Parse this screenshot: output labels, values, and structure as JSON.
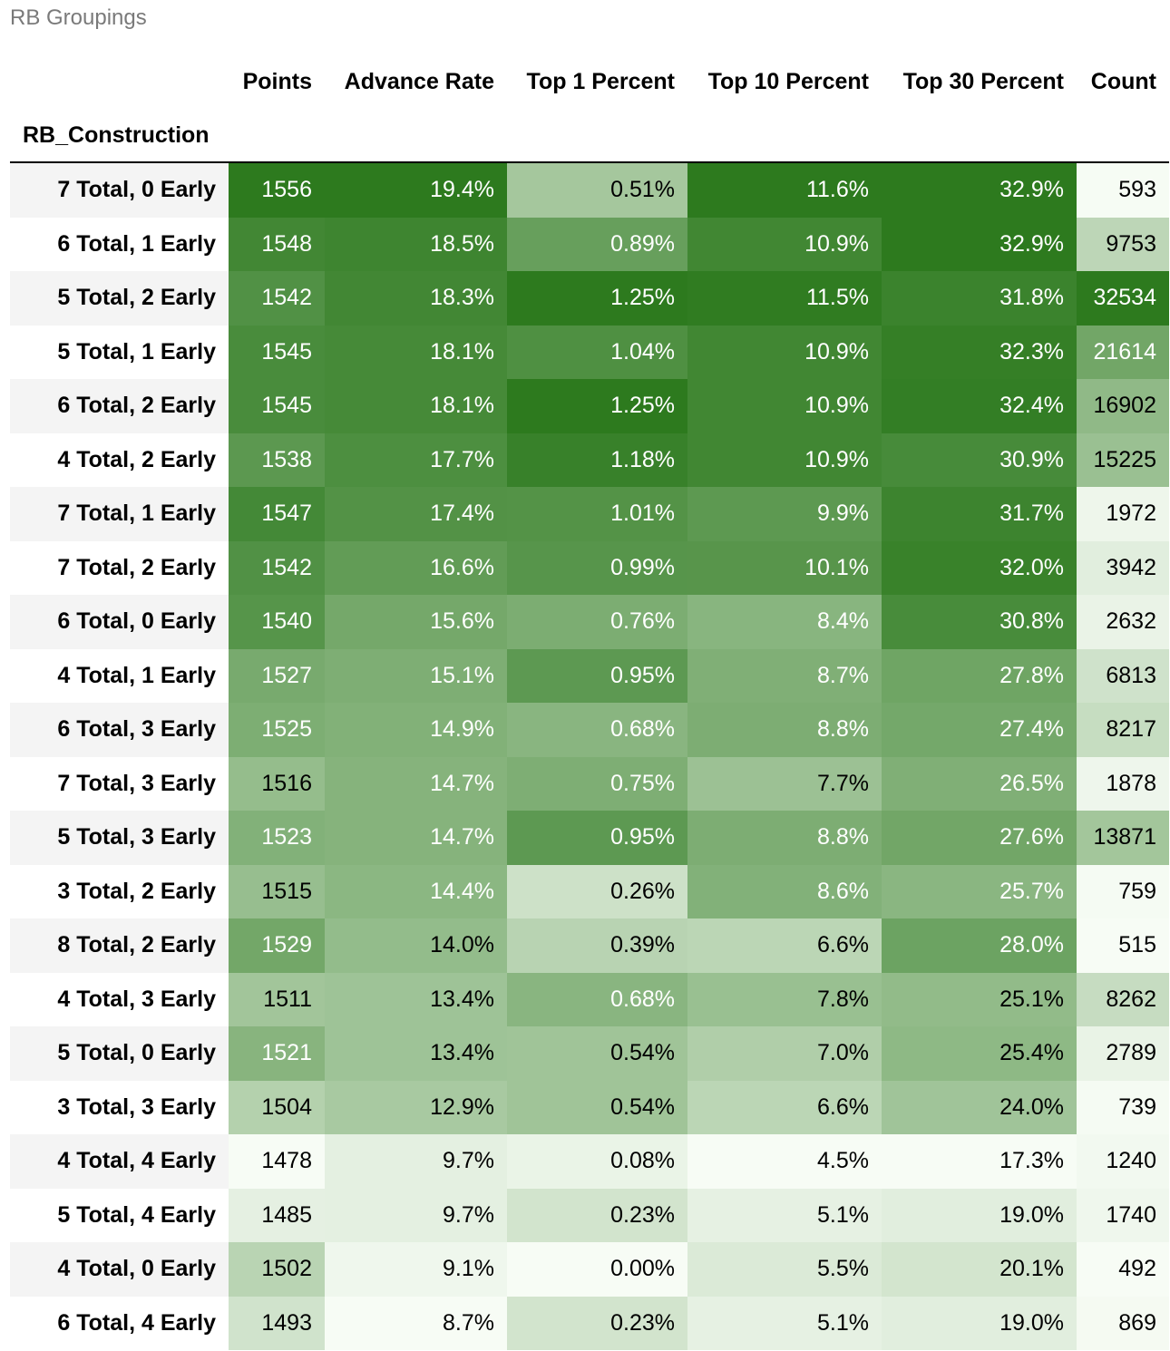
{
  "caption": "RB Groupings",
  "chart_data": {
    "type": "table",
    "title": "RB Groupings",
    "index_name": "RB_Construction",
    "columns": [
      "Points",
      "Advance Rate",
      "Top 1 Percent",
      "Top 10 Percent",
      "Top 30 Percent",
      "Count"
    ],
    "rows": [
      {
        "label": "7 Total, 0 Early",
        "values": [
          "1556",
          "19.4%",
          "0.51%",
          "11.6%",
          "32.9%",
          "593"
        ]
      },
      {
        "label": "6 Total, 1 Early",
        "values": [
          "1548",
          "18.5%",
          "0.89%",
          "10.9%",
          "32.9%",
          "9753"
        ]
      },
      {
        "label": "5 Total, 2 Early",
        "values": [
          "1542",
          "18.3%",
          "1.25%",
          "11.5%",
          "31.8%",
          "32534"
        ]
      },
      {
        "label": "5 Total, 1 Early",
        "values": [
          "1545",
          "18.1%",
          "1.04%",
          "10.9%",
          "32.3%",
          "21614"
        ]
      },
      {
        "label": "6 Total, 2 Early",
        "values": [
          "1545",
          "18.1%",
          "1.25%",
          "10.9%",
          "32.4%",
          "16902"
        ]
      },
      {
        "label": "4 Total, 2 Early",
        "values": [
          "1538",
          "17.7%",
          "1.18%",
          "10.9%",
          "30.9%",
          "15225"
        ]
      },
      {
        "label": "7 Total, 1 Early",
        "values": [
          "1547",
          "17.4%",
          "1.01%",
          "9.9%",
          "31.7%",
          "1972"
        ]
      },
      {
        "label": "7 Total, 2 Early",
        "values": [
          "1542",
          "16.6%",
          "0.99%",
          "10.1%",
          "32.0%",
          "3942"
        ]
      },
      {
        "label": "6 Total, 0 Early",
        "values": [
          "1540",
          "15.6%",
          "0.76%",
          "8.4%",
          "30.8%",
          "2632"
        ]
      },
      {
        "label": "4 Total, 1 Early",
        "values": [
          "1527",
          "15.1%",
          "0.95%",
          "8.7%",
          "27.8%",
          "6813"
        ]
      },
      {
        "label": "6 Total, 3 Early",
        "values": [
          "1525",
          "14.9%",
          "0.68%",
          "8.8%",
          "27.4%",
          "8217"
        ]
      },
      {
        "label": "7 Total, 3 Early",
        "values": [
          "1516",
          "14.7%",
          "0.75%",
          "7.7%",
          "26.5%",
          "1878"
        ]
      },
      {
        "label": "5 Total, 3 Early",
        "values": [
          "1523",
          "14.7%",
          "0.95%",
          "8.8%",
          "27.6%",
          "13871"
        ]
      },
      {
        "label": "3 Total, 2 Early",
        "values": [
          "1515",
          "14.4%",
          "0.26%",
          "8.6%",
          "25.7%",
          "759"
        ]
      },
      {
        "label": "8 Total, 2 Early",
        "values": [
          "1529",
          "14.0%",
          "0.39%",
          "6.6%",
          "28.0%",
          "515"
        ]
      },
      {
        "label": "4 Total, 3 Early",
        "values": [
          "1511",
          "13.4%",
          "0.68%",
          "7.8%",
          "25.1%",
          "8262"
        ]
      },
      {
        "label": "5 Total, 0 Early",
        "values": [
          "1521",
          "13.4%",
          "0.54%",
          "7.0%",
          "25.4%",
          "2789"
        ]
      },
      {
        "label": "3 Total, 3 Early",
        "values": [
          "1504",
          "12.9%",
          "0.54%",
          "6.6%",
          "24.0%",
          "739"
        ]
      },
      {
        "label": "4 Total, 4 Early",
        "values": [
          "1478",
          "9.7%",
          "0.08%",
          "4.5%",
          "17.3%",
          "1240"
        ]
      },
      {
        "label": "5 Total, 4 Early",
        "values": [
          "1485",
          "9.7%",
          "0.23%",
          "5.1%",
          "19.0%",
          "1740"
        ]
      },
      {
        "label": "4 Total, 0 Early",
        "values": [
          "1502",
          "9.1%",
          "0.00%",
          "5.5%",
          "20.1%",
          "492"
        ]
      },
      {
        "label": "6 Total, 4 Early",
        "values": [
          "1493",
          "8.7%",
          "0.23%",
          "5.1%",
          "19.0%",
          "869"
        ]
      }
    ],
    "colormap": {
      "low": "#f7fcf5",
      "high": "#2d7a1e",
      "scaling": "per-column min-max"
    }
  }
}
